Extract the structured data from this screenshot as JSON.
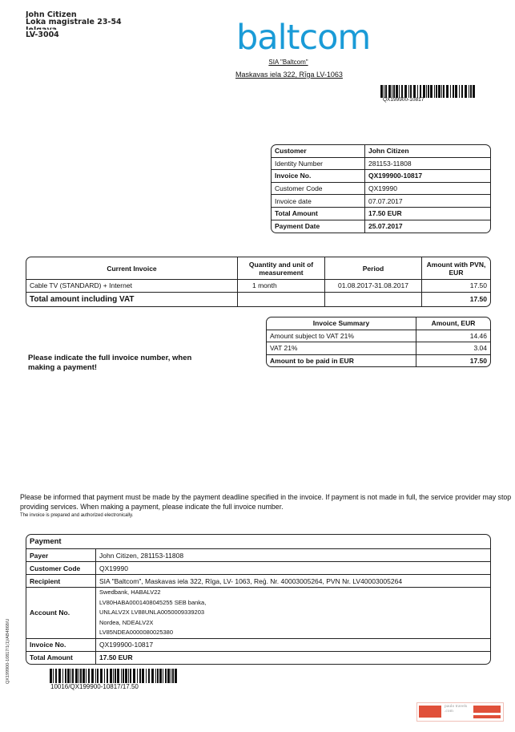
{
  "recipient_address": [
    "John Citizen",
    "Loka magistrale 23-54",
    "Jelgava",
    "LV-3004"
  ],
  "brand": {
    "logo_text": "baltcom",
    "color": "#1a9bd7",
    "company": "SIA \"Baltcom\"",
    "address": "Maskavas iela 322, Rīga LV-1063"
  },
  "top_barcode_text": "QX199900-10817",
  "customer_table": [
    {
      "label": "Customer",
      "value": "John Citizen",
      "bold": true
    },
    {
      "label": "Identity Number",
      "value": "281153-11808",
      "bold": false
    },
    {
      "label": "Invoice No.",
      "value": "QX199900-10817",
      "bold": true
    },
    {
      "label": "Customer Code",
      "value": "QX19990",
      "bold": false
    },
    {
      "label": "Invoice date",
      "value": "07.07.2017",
      "bold": false
    },
    {
      "label": "Total Amount",
      "value": "17.50 EUR",
      "bold": true
    },
    {
      "label": "Payment Date",
      "value": "25.07.2017",
      "bold": true
    }
  ],
  "current_invoice": {
    "headers": [
      "Current Invoice",
      "Quantity and unit of measurement",
      "Period",
      "Amount with PVN, EUR"
    ],
    "rows": [
      [
        "Cable TV (STANDARD) + Internet",
        "1 month",
        "01.08.2017-31.08.2017",
        "17.50"
      ]
    ],
    "total_label": "Total amount including VAT",
    "total_value": "17.50"
  },
  "summary": {
    "headers": [
      "Invoice Summary",
      "Amount, EUR"
    ],
    "rows": [
      [
        "Amount subject to VAT 21%",
        "14.46"
      ],
      [
        "VAT 21%",
        "3.04"
      ]
    ],
    "total": [
      "Amount to be paid in EUR",
      "17.50"
    ]
  },
  "note": "Please indicate the full invoice number, when making a payment!",
  "info_paragraph": "Please be informed that payment must be made by the payment deadline specified in the invoice. If payment is not made in full, the service provider may stop providing services. When making a payment, please indicate the full invoice number.",
  "small_note": "The invoice is prepared and authorized electronically.",
  "payment": {
    "title": "Payment",
    "rows": [
      {
        "label": "Payer",
        "value": "John Citizen, 281153-11808",
        "bold": false
      },
      {
        "label": "Customer Code",
        "value": "QX19990",
        "bold": false
      },
      {
        "label": "Recipient",
        "value": "SIA \"Baltcom\", Maskavas iela 322, Rīga, LV- 1063, Reģ. Nr. 40003005264, PVN Nr. LV40003005264",
        "bold": false
      },
      {
        "label": "Account No.",
        "value": "Swedbank,  HABALV22  LV80HABA0001408045255  SEB banka,  UNLALV2X  LV88UNLA0050009339203  Nordea, NDEALV2X LV85NDEA0000080025380",
        "bold": false
      },
      {
        "label": "Invoice No.",
        "value": "QX199900-10817",
        "bold": false
      },
      {
        "label": "Total Amount",
        "value": "17.50 EUR",
        "bold": true
      }
    ]
  },
  "side_code": "QX199900-10817/1(1)/AB4868/U",
  "bottom_barcode_text": "10016/QX199900-10817/17.50",
  "watermark": "paulo travels .com"
}
